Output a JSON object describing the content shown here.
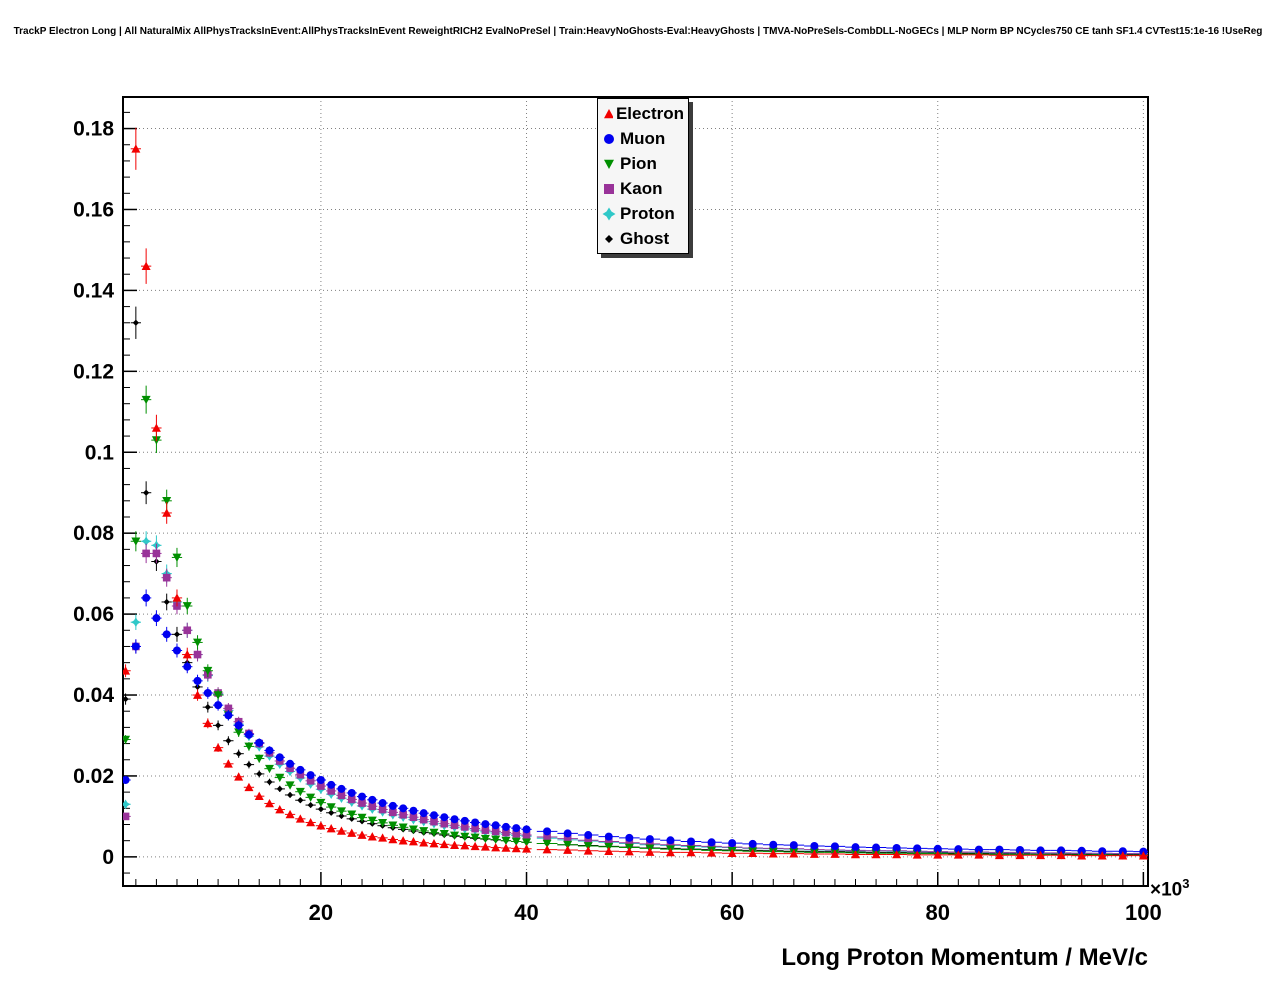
{
  "title": "TrackP Electron Long | All NaturalMix AllPhysTracksInEvent:AllPhysTracksInEvent ReweightRICH2 EvalNoPreSel | Train:HeavyNoGhosts-Eval:HeavyGhosts | TMVA-NoPreSels-CombDLL-NoGECs | MLP Norm BP NCycles750 CE tanh SF1.4 CVTest15:1e-16 !UseReg",
  "chart_data": {
    "type": "scatter",
    "title": "TrackP Electron Long",
    "xlabel": "Long Proton Momentum / MeV/c",
    "ylabel": "",
    "x_exponent": {
      "base": "×10",
      "power": "3"
    },
    "x_unit_scale": 1000,
    "xlim": [
      0.75,
      100.45
    ],
    "ylim": [
      -0.0072,
      0.1878
    ],
    "grid": "dotted",
    "legend_position": "top-center",
    "x_ticks": [
      20,
      40,
      60,
      80,
      100
    ],
    "x_tick_labels": [
      "20",
      "40",
      "60",
      "80",
      "100"
    ],
    "x_minor_step": 2,
    "y_ticks": [
      0,
      0.02,
      0.04,
      0.06,
      0.08,
      0.1,
      0.12,
      0.14,
      0.16,
      0.18
    ],
    "y_tick_labels": [
      "0",
      "0.02",
      "0.04",
      "0.06",
      "0.08",
      "0.1",
      "0.12",
      "0.14",
      "0.16",
      "0.18"
    ],
    "y_minor_step": 0.004,
    "x": [
      1,
      2,
      3,
      4,
      5,
      6,
      7,
      8,
      9,
      10,
      11,
      12,
      13,
      14,
      15,
      16,
      17,
      18,
      19,
      20,
      21,
      22,
      23,
      24,
      25,
      26,
      27,
      28,
      29,
      30,
      31,
      32,
      33,
      34,
      35,
      36,
      37,
      38,
      39,
      40,
      42,
      44,
      46,
      48,
      50,
      52,
      54,
      56,
      58,
      60,
      62,
      64,
      66,
      68,
      70,
      72,
      74,
      76,
      78,
      80,
      82,
      84,
      86,
      88,
      90,
      92,
      94,
      96,
      98,
      100
    ],
    "series": [
      {
        "name": "Electron",
        "color": "#f20000",
        "marker": "triangle-up",
        "values": [
          0.046,
          0.175,
          0.146,
          0.106,
          0.085,
          0.064,
          0.05,
          0.04,
          0.033,
          0.027,
          0.023,
          0.0198,
          0.0172,
          0.015,
          0.0132,
          0.0117,
          0.0105,
          0.0094,
          0.0085,
          0.0077,
          0.007,
          0.0064,
          0.0059,
          0.0054,
          0.005,
          0.0047,
          0.0043,
          0.004,
          0.0038,
          0.0035,
          0.0033,
          0.0031,
          0.0029,
          0.0028,
          0.0026,
          0.0025,
          0.0023,
          0.0022,
          0.0021,
          0.002,
          0.0018,
          0.0017,
          0.0015,
          0.0014,
          0.0013,
          0.0012,
          0.0011,
          0.0011,
          0.001,
          0.0009,
          0.0009,
          0.0008,
          0.0008,
          0.0007,
          0.0007,
          0.0006,
          0.0006,
          0.0006,
          0.0005,
          0.0005,
          0.0005,
          0.0005,
          0.0004,
          0.0004,
          0.0004,
          0.0004,
          0.0003,
          0.0003,
          0.0003,
          0.0003
        ]
      },
      {
        "name": "Muon",
        "color": "#0000f0",
        "marker": "circle",
        "values": [
          0.019,
          0.052,
          0.064,
          0.059,
          0.055,
          0.051,
          0.047,
          0.0435,
          0.0405,
          0.0375,
          0.035,
          0.0325,
          0.0302,
          0.0282,
          0.0263,
          0.0246,
          0.023,
          0.0215,
          0.0202,
          0.019,
          0.0178,
          0.0168,
          0.0158,
          0.0149,
          0.0141,
          0.0133,
          0.0126,
          0.012,
          0.0114,
          0.0108,
          0.0103,
          0.0098,
          0.0093,
          0.0089,
          0.0085,
          0.0081,
          0.0078,
          0.0074,
          0.0071,
          0.0068,
          0.0063,
          0.0058,
          0.0054,
          0.005,
          0.0047,
          0.0044,
          0.0041,
          0.0038,
          0.0036,
          0.0034,
          0.0032,
          0.003,
          0.0029,
          0.0027,
          0.0026,
          0.0024,
          0.0023,
          0.0022,
          0.0021,
          0.002,
          0.0019,
          0.0018,
          0.0018,
          0.0017,
          0.0016,
          0.0016,
          0.0015,
          0.0014,
          0.0014,
          0.0013
        ]
      },
      {
        "name": "Pion",
        "color": "#008f00",
        "marker": "triangle-down",
        "values": [
          0.029,
          0.078,
          0.113,
          0.103,
          0.088,
          0.074,
          0.062,
          0.053,
          0.046,
          0.04,
          0.035,
          0.0308,
          0.0273,
          0.0243,
          0.0218,
          0.0196,
          0.0177,
          0.0161,
          0.0147,
          0.0134,
          0.0123,
          0.0113,
          0.0105,
          0.0097,
          0.009,
          0.0084,
          0.0078,
          0.0073,
          0.0068,
          0.0064,
          0.006,
          0.0057,
          0.0053,
          0.005,
          0.0048,
          0.0045,
          0.0043,
          0.004,
          0.0038,
          0.0036,
          0.0033,
          0.003,
          0.0027,
          0.0025,
          0.0023,
          0.0021,
          0.0019,
          0.0018,
          0.0016,
          0.0015,
          0.0014,
          0.0013,
          0.0012,
          0.0011,
          0.0011,
          0.001,
          0.0009,
          0.0009,
          0.0008,
          0.0008,
          0.0007,
          0.0007,
          0.0006,
          0.0006,
          0.0006,
          0.0005,
          0.0005,
          0.0005,
          0.0004,
          0.0004
        ]
      },
      {
        "name": "Kaon",
        "color": "#993399",
        "marker": "square",
        "values": [
          0.01,
          0.052,
          0.075,
          0.075,
          0.069,
          0.062,
          0.056,
          0.05,
          0.045,
          0.0405,
          0.0367,
          0.0334,
          0.0305,
          0.028,
          0.0257,
          0.0237,
          0.0219,
          0.0203,
          0.0188,
          0.0175,
          0.0163,
          0.0152,
          0.0142,
          0.0133,
          0.0125,
          0.0117,
          0.011,
          0.0104,
          0.0098,
          0.0092,
          0.0087,
          0.0082,
          0.0078,
          0.0074,
          0.007,
          0.0066,
          0.0063,
          0.006,
          0.0057,
          0.0054,
          0.0049,
          0.0045,
          0.0041,
          0.0038,
          0.0035,
          0.0032,
          0.003,
          0.0028,
          0.0026,
          0.0024,
          0.0022,
          0.0021,
          0.002,
          0.0018,
          0.0017,
          0.0016,
          0.0015,
          0.0015,
          0.0014,
          0.0013,
          0.0012,
          0.0012,
          0.0011,
          0.0011,
          0.001,
          0.001,
          0.0009,
          0.0009,
          0.0008,
          0.0008
        ]
      },
      {
        "name": "Proton",
        "color": "#2fc8c8",
        "marker": "star",
        "values": [
          0.013,
          0.058,
          0.078,
          0.077,
          0.07,
          0.063,
          0.056,
          0.05,
          0.0448,
          0.0402,
          0.0362,
          0.0328,
          0.0298,
          0.0272,
          0.0249,
          0.0229,
          0.0211,
          0.0195,
          0.018,
          0.0167,
          0.0155,
          0.0145,
          0.0135,
          0.0126,
          0.0118,
          0.0111,
          0.0104,
          0.0098,
          0.0092,
          0.0087,
          0.0082,
          0.0077,
          0.0073,
          0.0069,
          0.0066,
          0.0062,
          0.0059,
          0.0056,
          0.0053,
          0.0051,
          0.0046,
          0.0042,
          0.0039,
          0.0036,
          0.0033,
          0.003,
          0.0028,
          0.0026,
          0.0024,
          0.0023,
          0.0021,
          0.002,
          0.0019,
          0.0017,
          0.0016,
          0.0015,
          0.0015,
          0.0014,
          0.0013,
          0.0012,
          0.0012,
          0.0011,
          0.001,
          0.001,
          0.0009,
          0.0009,
          0.0009,
          0.0008,
          0.0008,
          0.0008
        ]
      },
      {
        "name": "Ghost",
        "color": "#000000",
        "marker": "diamond",
        "values": [
          0.039,
          0.132,
          0.09,
          0.073,
          0.063,
          0.055,
          0.048,
          0.042,
          0.037,
          0.0325,
          0.0287,
          0.0255,
          0.0228,
          0.0205,
          0.0185,
          0.0168,
          0.0153,
          0.014,
          0.0128,
          0.0118,
          0.0109,
          0.0101,
          0.0094,
          0.0088,
          0.0082,
          0.0077,
          0.0072,
          0.0068,
          0.0064,
          0.006,
          0.0057,
          0.0054,
          0.0051,
          0.0048,
          0.0046,
          0.0044,
          0.0042,
          0.004,
          0.0038,
          0.0036,
          0.0033,
          0.003,
          0.0028,
          0.0026,
          0.0024,
          0.0022,
          0.0021,
          0.0019,
          0.0018,
          0.0017,
          0.0016,
          0.0015,
          0.0014,
          0.0013,
          0.0013,
          0.0012,
          0.0011,
          0.0011,
          0.001,
          0.001,
          0.0009,
          0.0009,
          0.0008,
          0.0008,
          0.0008,
          0.0007,
          0.0007,
          0.0007,
          0.0006,
          0.0006
        ]
      }
    ]
  }
}
